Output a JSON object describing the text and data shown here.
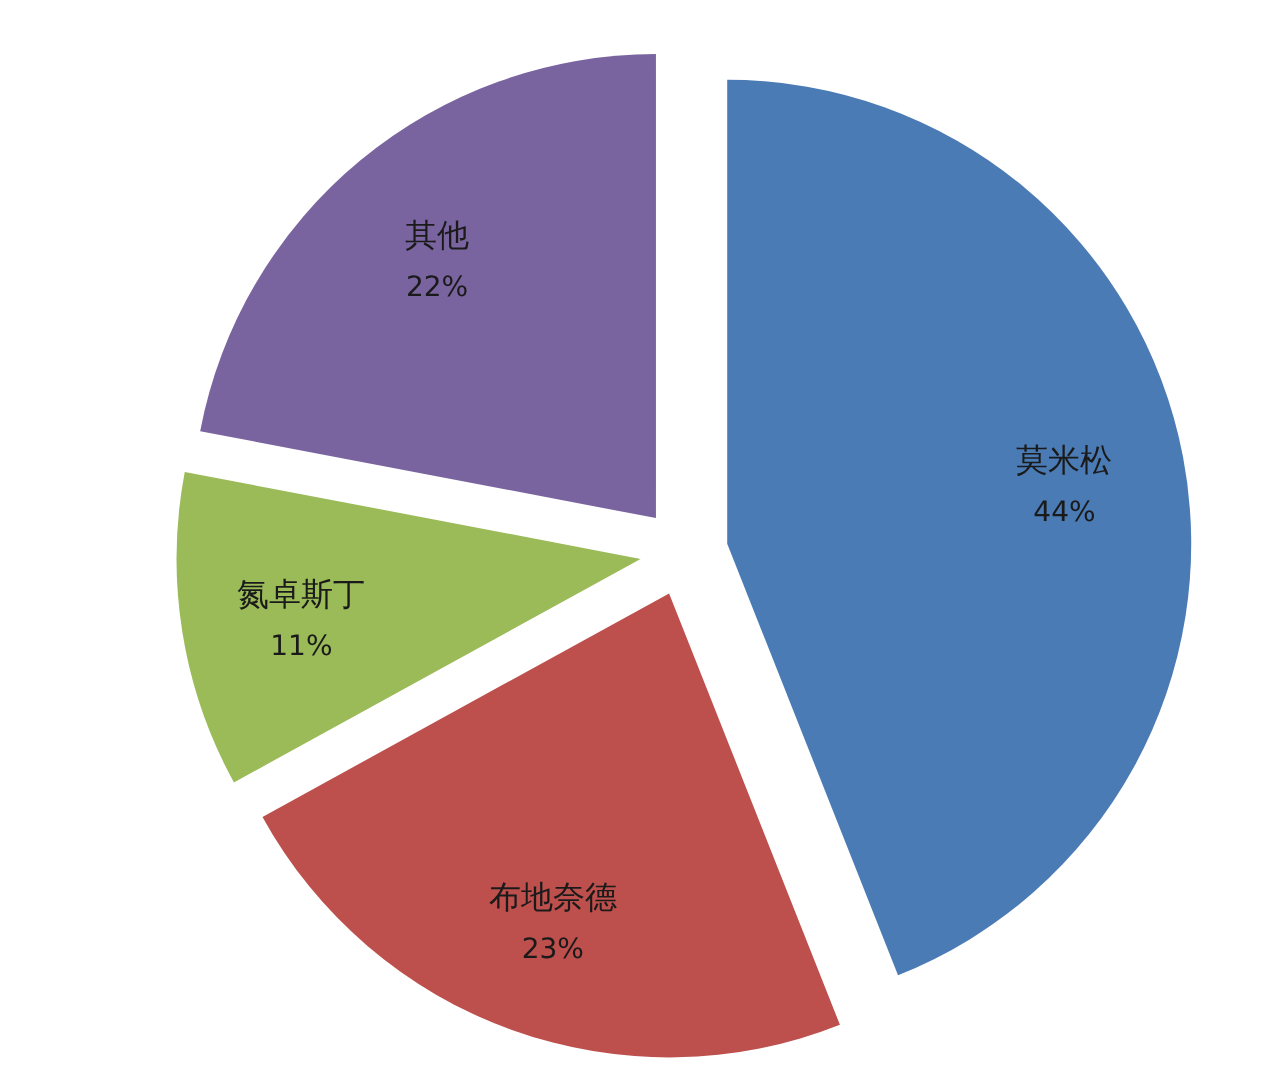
{
  "chart_data": {
    "type": "pie",
    "categories": [
      "莫米松",
      "布地奈德",
      "氮卓斯丁",
      "其他"
    ],
    "values": [
      44,
      23,
      11,
      22
    ],
    "colors": [
      "#4a7bb5",
      "#bd4f4c",
      "#9bbb59",
      "#7a64a0"
    ],
    "value_labels": [
      "44%",
      "23%",
      "11%",
      "22%"
    ]
  }
}
